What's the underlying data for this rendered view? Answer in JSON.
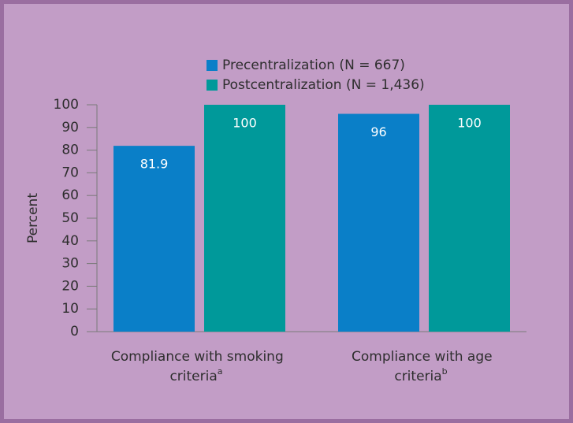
{
  "chart_data": {
    "type": "bar",
    "categories": [
      "Compliance with smoking criteria",
      "Compliance with age criteria"
    ],
    "category_footnotes": [
      "a",
      "b"
    ],
    "ylabel": "Percent",
    "series": [
      {
        "name": "Precentralization (N = 667)",
        "color": "#0a7fc8",
        "values": [
          81.9,
          96
        ]
      },
      {
        "name": "Postcentralization (N = 1,436)",
        "color": "#00999a",
        "values": [
          100,
          100
        ]
      }
    ],
    "ylim": [
      0,
      100
    ],
    "yticks": [
      0,
      10,
      20,
      30,
      40,
      50,
      60,
      70,
      80,
      90,
      100
    ],
    "legend": "top"
  }
}
